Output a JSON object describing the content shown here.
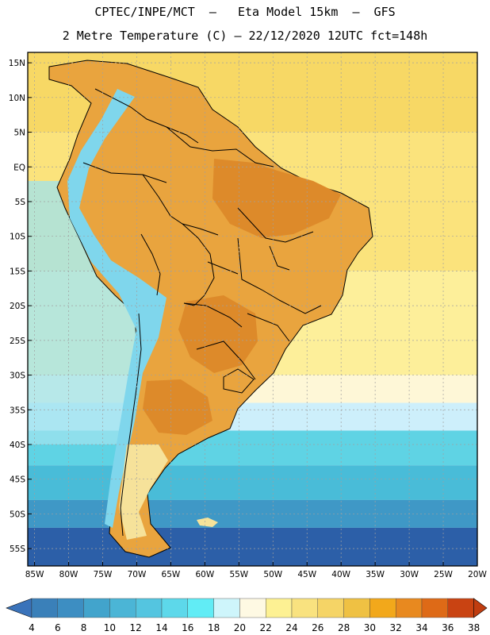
{
  "title": {
    "line1": "CPTEC/INPE/MCT  –   Eta Model 15km  –  GFS",
    "line2": "2 Metre Temperature (C) – 22/12/2020 12UTC fct=148h"
  },
  "map": {
    "lat_labels": [
      "15N",
      "10N",
      "5N",
      "EQ",
      "5S",
      "10S",
      "15S",
      "20S",
      "25S",
      "30S",
      "35S",
      "40S",
      "45S",
      "50S",
      "55S"
    ],
    "lon_labels": [
      "85W",
      "80W",
      "75W",
      "70W",
      "65W",
      "60W",
      "55W",
      "50W",
      "45W",
      "40W",
      "35W",
      "30W",
      "25W",
      "20W"
    ],
    "lat_range": [
      -57.5,
      16.5
    ],
    "lon_range": [
      -86,
      -20
    ],
    "ocean_bands": [
      {
        "lat_from": 16.5,
        "lat_to": 5,
        "color": "#f7d865"
      },
      {
        "lat_from": 5,
        "lat_to": -15,
        "color": "#fbe37c"
      },
      {
        "lat_from": -15,
        "lat_to": -30,
        "color": "#fdef9a"
      },
      {
        "lat_from": -30,
        "lat_to": -34,
        "color": "#fef7d7"
      },
      {
        "lat_from": -34,
        "lat_to": -38,
        "color": "#cdeffb"
      },
      {
        "lat_from": -38,
        "lat_to": -43,
        "color": "#5fd3e4"
      },
      {
        "lat_from": -43,
        "lat_to": -48,
        "color": "#49bcd8"
      },
      {
        "lat_from": -48,
        "lat_to": -52,
        "color": "#3f98c6"
      },
      {
        "lat_from": -52,
        "lat_to": -57.5,
        "color": "#2c5fa8"
      }
    ],
    "pacific_cool_color": "#9fe3ef",
    "land_color": "#e9a43e",
    "hot_color": "#dd8a2a",
    "andes_color": "#7fd6ec",
    "patagonia_color": "#f6e29a",
    "border_color": "#000000",
    "grid_color": "#a0a0a0"
  },
  "colorbar": {
    "labels": [
      "4",
      "6",
      "8",
      "10",
      "12",
      "14",
      "16",
      "18",
      "20",
      "22",
      "24",
      "26",
      "28",
      "30",
      "32",
      "34",
      "36",
      "38"
    ],
    "colors": [
      "#3a80b9",
      "#3d8ec2",
      "#42a4cc",
      "#4bb5d6",
      "#54c5e0",
      "#5dd8ea",
      "#61ecf5",
      "#cef5fb",
      "#fef9e3",
      "#fdf193",
      "#f9e27f",
      "#f5d466",
      "#efc143",
      "#f2a81b",
      "#e8891f",
      "#de6a17",
      "#c94312"
    ],
    "left_arrow_color": "#3a73ba",
    "right_arrow_color": "#c03d10"
  }
}
